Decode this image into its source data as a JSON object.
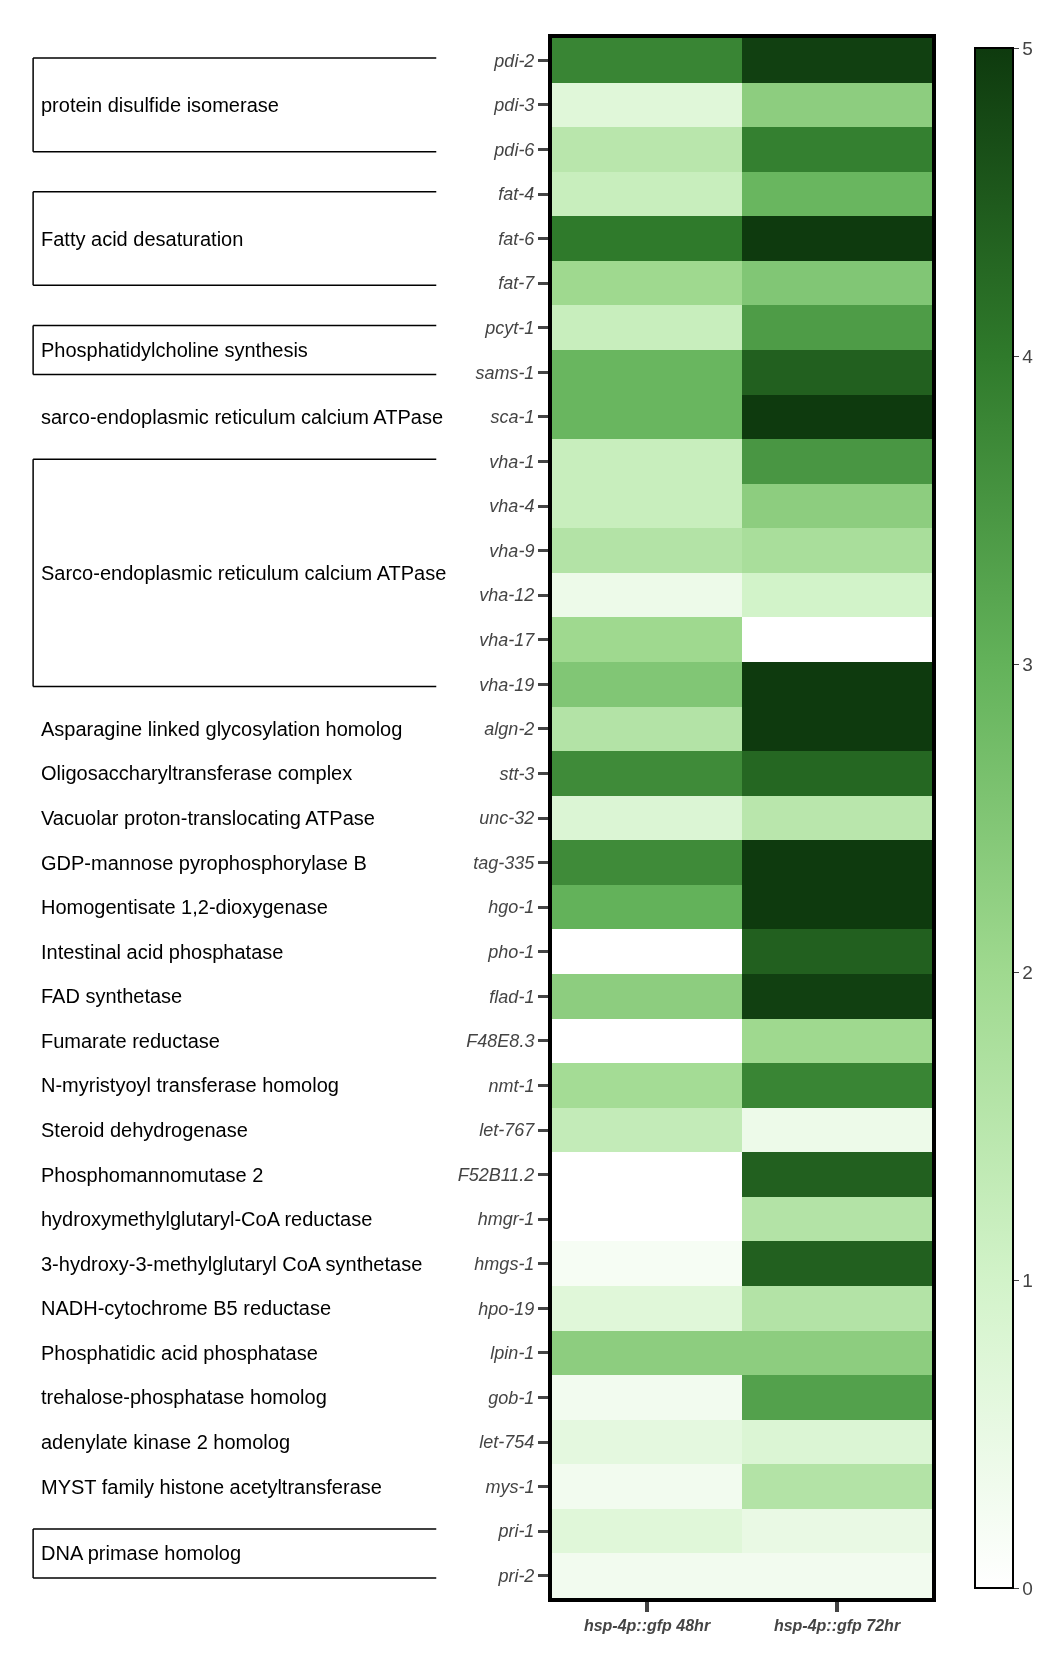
{
  "chart_data": {
    "type": "heatmap",
    "categories": [
      "hsp-4p::gfp 48hr",
      "hsp-4p::gfp 72hr"
    ],
    "y_categories": [
      "pdi-2",
      "pdi-3",
      "pdi-6",
      "fat-4",
      "fat-6",
      "fat-7",
      "pcyt-1",
      "sams-1",
      "sca-1",
      "vha-1",
      "vha-4",
      "vha-9",
      "vha-12",
      "vha-17",
      "vha-19",
      "algn-2",
      "stt-3",
      "unc-32",
      "tag-335",
      "hgo-1",
      "pho-1",
      "flad-1",
      "F48E8.3",
      "nmt-1",
      "let-767",
      "F52B11.2",
      "hmgr-1",
      "hmgs-1",
      "hpo-19",
      "lpin-1",
      "gob-1",
      "let-754",
      "mys-1",
      "pri-1",
      "pri-2"
    ],
    "cells": [
      [
        3.8,
        4.9
      ],
      [
        0.7,
        2.3
      ],
      [
        1.5,
        3.9
      ],
      [
        1.2,
        2.9
      ],
      [
        4.0,
        5.0
      ],
      [
        2.0,
        2.5
      ],
      [
        1.2,
        3.4
      ],
      [
        2.9,
        4.4
      ],
      [
        2.9,
        5.0
      ],
      [
        1.2,
        3.5
      ],
      [
        1.2,
        2.3
      ],
      [
        1.6,
        1.8
      ],
      [
        0.4,
        1.0
      ],
      [
        2.0,
        0
      ],
      [
        2.5,
        5.0
      ],
      [
        1.6,
        5.0
      ],
      [
        3.7,
        4.3
      ],
      [
        0.8,
        1.5
      ],
      [
        3.7,
        5.0
      ],
      [
        3.0,
        5.0
      ],
      [
        0,
        4.4
      ],
      [
        2.3,
        4.9
      ],
      [
        0,
        2.0
      ],
      [
        1.9,
        3.8
      ],
      [
        1.3,
        0.4
      ],
      [
        0,
        4.4
      ],
      [
        0,
        1.6
      ],
      [
        0.2,
        4.4
      ],
      [
        0.7,
        1.6
      ],
      [
        2.3,
        2.3
      ],
      [
        0.3,
        3.3
      ],
      [
        0.6,
        0.8
      ],
      [
        0.3,
        1.6
      ],
      [
        0.7,
        0.5
      ],
      [
        0.3,
        0.3
      ]
    ],
    "clim": [
      0,
      5
    ],
    "cticks": [
      0,
      1,
      2,
      3,
      4,
      5
    ],
    "annotations": [
      "protein disulfide isomerase",
      "Fatty acid desaturation",
      "Phosphatidylcholine synthesis",
      "sarco-endoplasmic reticulum calcium ATPase",
      "Sarco-endoplasmic reticulum calcium ATPase",
      "Asparagine linked glycosylation homolog",
      "Oligosaccharyltransferase complex",
      "Vacuolar proton-translocating ATPase",
      "GDP-mannose pyrophosphorylase B",
      "Homogentisate 1,2-dioxygenase",
      "Intestinal acid phosphatase",
      "FAD synthetase",
      "Fumarate reductase",
      "N-myristyoyl transferase homolog",
      "Steroid dehydrogenase",
      "Phosphomannomutase 2",
      "hydroxymethylglutaryl-CoA reductase",
      "3-hydroxy-3-methylglutaryl CoA synthetase",
      "NADH-cytochrome B5 reductase",
      "Phosphatidic acid phosphatase",
      "trehalose-phosphatase homolog",
      "adenylate kinase 2 homolog",
      "MYST family histone acetyltransferase",
      "DNA primase homolog"
    ]
  }
}
